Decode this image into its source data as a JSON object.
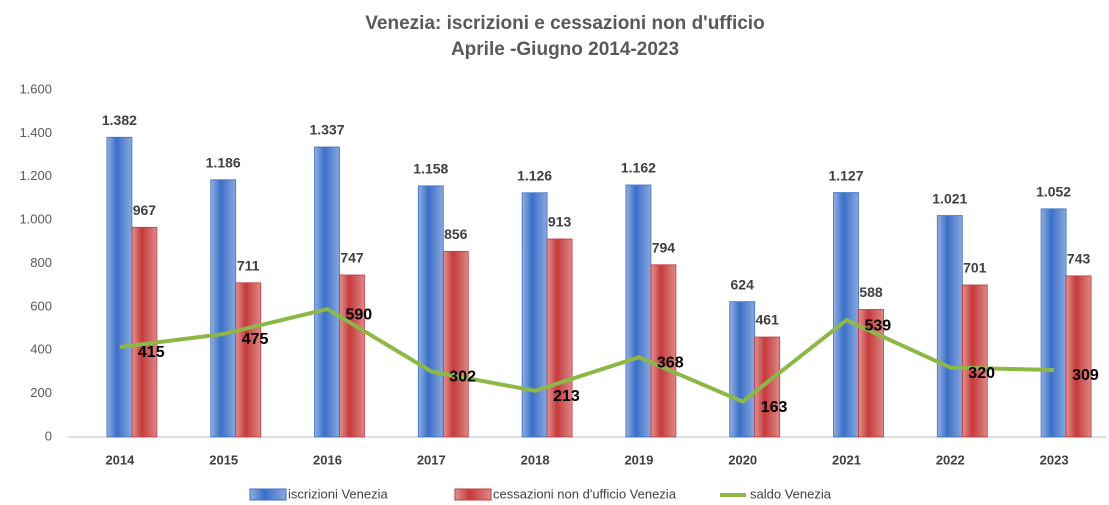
{
  "chart_data": {
    "type": "bar_line",
    "title": "Venezia: iscrizioni e cessazioni non d'ufficio",
    "subtitle": "Aprile -Giugno 2014-2023",
    "categories": [
      "2014",
      "2015",
      "2016",
      "2017",
      "2018",
      "2019",
      "2020",
      "2021",
      "2022",
      "2023"
    ],
    "series": [
      {
        "name": "iscrizioni Venezia",
        "color": "#3b6fc8",
        "type": "bar",
        "values": [
          1382,
          1186,
          1337,
          1158,
          1126,
          1162,
          624,
          1127,
          1021,
          1052
        ],
        "value_labels": [
          "1.382",
          "1.186",
          "1.337",
          "1.158",
          "1.126",
          "1.162",
          "624",
          "1.127",
          "1.021",
          "1.052"
        ]
      },
      {
        "name": "cessazioni non d'ufficio  Venezia",
        "color": "#c63a3a",
        "type": "bar",
        "values": [
          967,
          711,
          747,
          856,
          913,
          794,
          461,
          588,
          701,
          743
        ]
      },
      {
        "name": "saldo Venezia",
        "color": "#8db848",
        "type": "line",
        "values": [
          415,
          475,
          590,
          302,
          213,
          368,
          163,
          539,
          320,
          309
        ]
      }
    ],
    "ylim": [
      0,
      1600
    ],
    "yticks": [
      0,
      200,
      400,
      600,
      800,
      {
        "value": 1000,
        "label": "1.000"
      },
      {
        "value": 1200,
        "label": "1.200"
      },
      {
        "value": 1400,
        "label": "1.400"
      },
      {
        "value": 1600,
        "label": "1.600"
      }
    ],
    "grid": false
  }
}
